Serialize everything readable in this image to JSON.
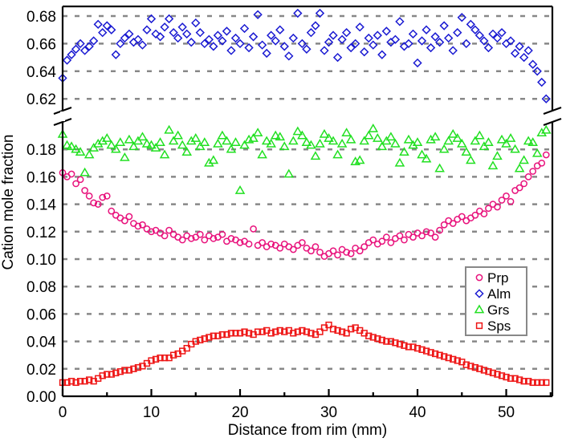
{
  "chart_data": {
    "type": "scatter",
    "title": "",
    "xlabel": "Distance from rim (mm)",
    "ylabel": "Cation mole fraction",
    "xlim": [
      0,
      55.2
    ],
    "ylim_lower": [
      0,
      0.196
    ],
    "ylim_upper": [
      0.612,
      0.687
    ],
    "axis_break": true,
    "grid": "horizontal dashed",
    "legend_position": "lower-right",
    "x_ticks": [
      "0",
      "10",
      "20",
      "30",
      "40",
      "50"
    ],
    "x_tick_values": [
      0,
      10,
      20,
      30,
      40,
      50
    ],
    "y_ticks_lower": [
      "0.00",
      "0.02",
      "0.04",
      "0.06",
      "0.08",
      "0.10",
      "0.12",
      "0.14",
      "0.16",
      "0.18"
    ],
    "y_tick_values_lower": [
      0,
      0.02,
      0.04,
      0.06,
      0.08,
      0.1,
      0.12,
      0.14,
      0.16,
      0.18
    ],
    "y_ticks_upper": [
      "0.62",
      "0.64",
      "0.66",
      "0.68"
    ],
    "y_tick_values_upper": [
      0.62,
      0.64,
      0.66,
      0.68
    ],
    "x_start": 0,
    "x_step": 0.5,
    "series": [
      {
        "name": "Prp",
        "marker": "circle",
        "color": "#e8127c",
        "values": [
          0.163,
          0.16,
          0.162,
          0.155,
          0.158,
          0.15,
          0.146,
          0.141,
          0.14,
          0.145,
          0.146,
          0.135,
          0.132,
          0.13,
          0.128,
          0.131,
          0.126,
          0.124,
          0.125,
          0.122,
          0.12,
          0.121,
          0.119,
          0.117,
          0.121,
          0.118,
          0.116,
          0.114,
          0.117,
          0.115,
          0.116,
          0.118,
          0.114,
          0.117,
          0.115,
          0.116,
          0.118,
          0.113,
          0.115,
          0.114,
          0.112,
          0.113,
          0.111,
          0.122,
          0.11,
          0.112,
          0.109,
          0.111,
          0.11,
          0.108,
          0.111,
          0.109,
          0.107,
          0.11,
          0.112,
          0.108,
          0.106,
          0.109,
          0.105,
          0.102,
          0.104,
          0.106,
          0.103,
          0.107,
          0.105,
          0.104,
          0.108,
          0.106,
          0.109,
          0.112,
          0.114,
          0.111,
          0.113,
          0.116,
          0.112,
          0.115,
          0.117,
          0.114,
          0.118,
          0.116,
          0.119,
          0.117,
          0.12,
          0.119,
          0.116,
          0.121,
          0.125,
          0.128,
          0.126,
          0.129,
          0.131,
          0.128,
          0.13,
          0.132,
          0.135,
          0.133,
          0.137,
          0.14,
          0.138,
          0.143,
          0.146,
          0.142,
          0.15,
          0.152,
          0.155,
          0.16,
          0.164,
          0.168,
          0.17,
          0.176
        ]
      },
      {
        "name": "Alm",
        "marker": "diamond",
        "color": "#1a1ad2",
        "values": [
          0.635,
          0.648,
          0.652,
          0.656,
          0.66,
          0.655,
          0.658,
          0.662,
          0.674,
          0.668,
          0.673,
          0.67,
          0.652,
          0.66,
          0.664,
          0.667,
          0.661,
          0.663,
          0.659,
          0.67,
          0.678,
          0.667,
          0.665,
          0.672,
          0.678,
          0.668,
          0.664,
          0.672,
          0.667,
          0.661,
          0.675,
          0.668,
          0.66,
          0.663,
          0.658,
          0.666,
          0.662,
          0.669,
          0.655,
          0.664,
          0.66,
          0.671,
          0.657,
          0.665,
          0.681,
          0.659,
          0.653,
          0.666,
          0.662,
          0.67,
          0.658,
          0.651,
          0.664,
          0.682,
          0.66,
          0.656,
          0.668,
          0.673,
          0.682,
          0.655,
          0.661,
          0.666,
          0.65,
          0.663,
          0.668,
          0.657,
          0.66,
          0.672,
          0.654,
          0.664,
          0.659,
          0.666,
          0.652,
          0.669,
          0.661,
          0.663,
          0.676,
          0.658,
          0.66,
          0.667,
          0.646,
          0.662,
          0.67,
          0.657,
          0.665,
          0.661,
          0.673,
          0.664,
          0.655,
          0.668,
          0.679,
          0.66,
          0.674,
          0.67,
          0.666,
          0.662,
          0.657,
          0.667,
          0.664,
          0.668,
          0.66,
          0.662,
          0.653,
          0.658,
          0.65,
          0.655,
          0.645,
          0.64,
          0.632,
          0.62
        ]
      },
      {
        "name": "Grs",
        "marker": "triangle",
        "color": "#22e022",
        "values": [
          0.191,
          0.183,
          0.182,
          0.18,
          0.178,
          0.163,
          0.176,
          0.181,
          0.184,
          0.186,
          0.188,
          0.183,
          0.18,
          0.185,
          0.174,
          0.187,
          0.182,
          0.186,
          0.189,
          0.184,
          0.183,
          0.181,
          0.185,
          0.176,
          0.194,
          0.186,
          0.19,
          0.183,
          0.178,
          0.186,
          0.188,
          0.182,
          0.185,
          0.17,
          0.172,
          0.184,
          0.19,
          0.186,
          0.18,
          0.185,
          0.15,
          0.183,
          0.187,
          0.188,
          0.192,
          0.176,
          0.186,
          0.184,
          0.19,
          0.189,
          0.182,
          0.162,
          0.186,
          0.193,
          0.19,
          0.185,
          0.183,
          0.175,
          0.184,
          0.191,
          0.188,
          0.186,
          0.176,
          0.184,
          0.192,
          0.187,
          0.171,
          0.172,
          0.186,
          0.19,
          0.195,
          0.188,
          0.182,
          0.186,
          0.189,
          0.184,
          0.17,
          0.178,
          0.187,
          0.183,
          0.185,
          0.176,
          0.173,
          0.187,
          0.189,
          0.166,
          0.18,
          0.186,
          0.191,
          0.188,
          0.184,
          0.178,
          0.172,
          0.186,
          0.19,
          0.182,
          0.185,
          0.168,
          0.175,
          0.187,
          0.184,
          0.188,
          0.18,
          0.166,
          0.172,
          0.186,
          0.185,
          0.177,
          0.192,
          0.194
        ]
      },
      {
        "name": "Sps",
        "marker": "square",
        "color": "#ee1515",
        "values": [
          0.01,
          0.01,
          0.011,
          0.01,
          0.011,
          0.011,
          0.012,
          0.011,
          0.013,
          0.015,
          0.016,
          0.016,
          0.017,
          0.018,
          0.019,
          0.019,
          0.02,
          0.021,
          0.022,
          0.024,
          0.026,
          0.027,
          0.028,
          0.028,
          0.028,
          0.03,
          0.031,
          0.033,
          0.035,
          0.038,
          0.04,
          0.041,
          0.042,
          0.043,
          0.044,
          0.044,
          0.045,
          0.045,
          0.046,
          0.046,
          0.046,
          0.047,
          0.046,
          0.045,
          0.047,
          0.047,
          0.048,
          0.046,
          0.047,
          0.048,
          0.047,
          0.048,
          0.046,
          0.047,
          0.048,
          0.047,
          0.046,
          0.045,
          0.047,
          0.05,
          0.052,
          0.049,
          0.048,
          0.047,
          0.046,
          0.049,
          0.05,
          0.048,
          0.046,
          0.044,
          0.043,
          0.042,
          0.041,
          0.04,
          0.04,
          0.039,
          0.038,
          0.037,
          0.036,
          0.036,
          0.035,
          0.034,
          0.033,
          0.032,
          0.031,
          0.03,
          0.029,
          0.028,
          0.027,
          0.026,
          0.025,
          0.023,
          0.022,
          0.021,
          0.02,
          0.019,
          0.018,
          0.017,
          0.016,
          0.015,
          0.014,
          0.013,
          0.013,
          0.012,
          0.011,
          0.011,
          0.01,
          0.01,
          0.01,
          0.01
        ]
      }
    ]
  }
}
